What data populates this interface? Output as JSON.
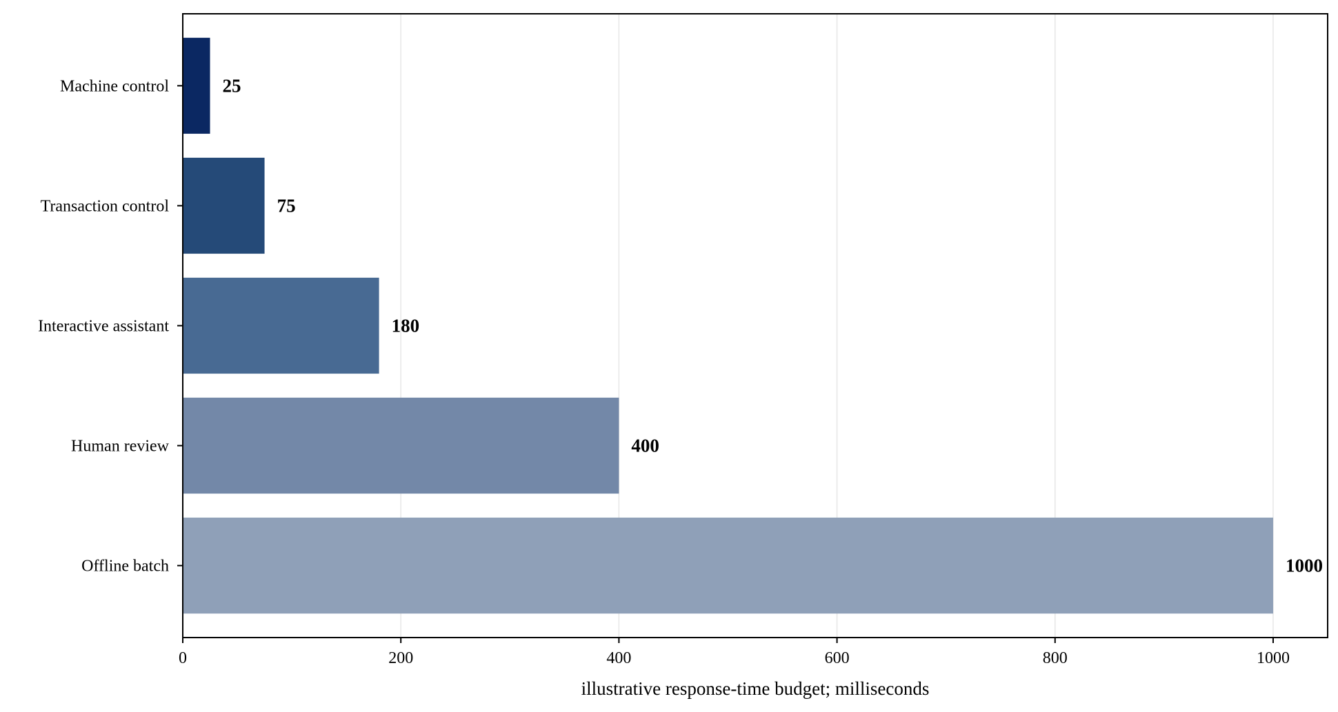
{
  "chart_data": {
    "type": "bar",
    "orientation": "horizontal",
    "title": "",
    "xlabel": "illustrative response-time budget; milliseconds",
    "ylabel": "",
    "xlim": [
      0,
      1050
    ],
    "xticks": [
      0,
      200,
      400,
      600,
      800,
      1000
    ],
    "grid": "vertical",
    "categories": [
      "Machine control",
      "Transaction control",
      "Interactive assistant",
      "Human review",
      "Offline batch"
    ],
    "values": [
      25,
      75,
      180,
      400,
      1000
    ],
    "colors": [
      "#0b2862",
      "#254a78",
      "#486a93",
      "#7388a8",
      "#8fa0b8"
    ]
  }
}
